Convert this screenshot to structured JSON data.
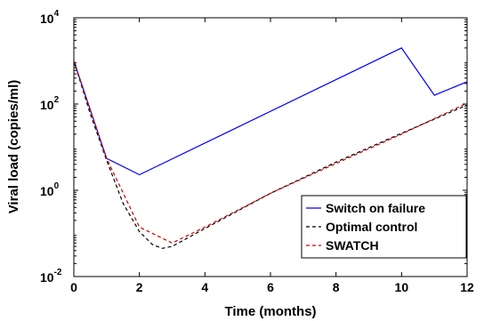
{
  "chart_data": {
    "type": "line",
    "title": "",
    "xlabel": "Time (months)",
    "ylabel": "Viral load (copies/ml)",
    "xlim": [
      0,
      12
    ],
    "ylim": [
      0.01,
      10000
    ],
    "yscale": "log",
    "x_ticks": [
      "0",
      "2",
      "4",
      "6",
      "8",
      "10",
      "12"
    ],
    "y_ticks": [
      {
        "base": "10",
        "exp": "-2"
      },
      {
        "base": "10",
        "exp": "0"
      },
      {
        "base": "10",
        "exp": "2"
      },
      {
        "base": "10",
        "exp": "4"
      }
    ],
    "grid": false,
    "legend_position": "bottom-right",
    "series": [
      {
        "name": "Switch on failure",
        "color": "#0000ff",
        "style": "solid",
        "x": [
          0,
          1,
          2,
          10,
          11,
          12
        ],
        "y": [
          1000,
          5.5,
          2.3,
          2000,
          160,
          330
        ]
      },
      {
        "name": "Optimal control",
        "color": "#000000",
        "style": "dashed",
        "x": [
          0,
          0.5,
          1,
          1.5,
          2,
          2.4,
          2.7,
          3,
          4,
          6,
          8,
          10,
          12
        ],
        "y": [
          1000,
          60,
          5,
          0.5,
          0.11,
          0.055,
          0.045,
          0.05,
          0.13,
          0.85,
          4.5,
          21,
          95
        ]
      },
      {
        "name": "SWATCH",
        "color": "#cc0000",
        "style": "dashed",
        "x": [
          0,
          1,
          2,
          3,
          4,
          6,
          8,
          10,
          12
        ],
        "y": [
          1000,
          5.5,
          0.14,
          0.06,
          0.14,
          0.85,
          4.2,
          20,
          105
        ]
      }
    ]
  }
}
